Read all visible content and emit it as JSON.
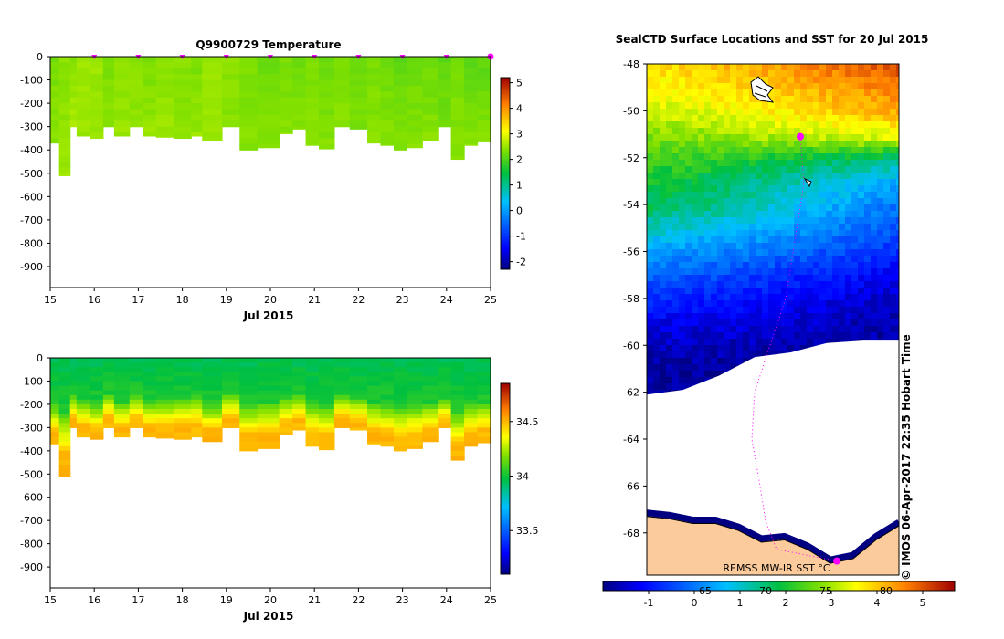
{
  "chart_data": [
    {
      "id": "temperature",
      "type": "heatmap",
      "title": "Q9900729  Temperature",
      "xlabel": "Jul 2015",
      "ylabel": "",
      "xlim": [
        15,
        25
      ],
      "ylim": [
        -990,
        0
      ],
      "x_ticks": [
        15,
        16,
        17,
        18,
        19,
        20,
        21,
        22,
        23,
        24,
        25
      ],
      "y_ticks": [
        0,
        -100,
        -200,
        -300,
        -400,
        -500,
        -600,
        -700,
        -800,
        -900
      ],
      "profile_markers": [
        16,
        17,
        18,
        19,
        20,
        21,
        22,
        23,
        24,
        25
      ],
      "colorbar": {
        "min": -2.3,
        "max": 5.2,
        "ticks": [
          5,
          4,
          3,
          2,
          1,
          0,
          -1,
          -2
        ]
      },
      "profile_x": [
        15.0,
        15.2,
        15.45,
        15.6,
        15.9,
        16.2,
        16.45,
        16.8,
        17.1,
        17.4,
        17.8,
        18.2,
        18.45,
        18.9,
        19.3,
        19.7,
        20.2,
        20.5,
        20.8,
        21.1,
        21.45,
        21.8,
        22.2,
        22.5,
        22.8,
        23.1,
        23.45,
        23.8,
        24.1,
        24.4,
        24.7,
        25.0
      ],
      "profile_depth": [
        -370,
        -510,
        -300,
        -340,
        -350,
        -300,
        -340,
        -300,
        -340,
        -345,
        -350,
        -340,
        -360,
        -300,
        -400,
        -390,
        -330,
        -310,
        -380,
        -395,
        -300,
        -310,
        -370,
        -380,
        -400,
        -390,
        -360,
        -300,
        -440,
        -380,
        -365,
        -350
      ],
      "surface_temp": [
        2.3,
        2.4,
        2.4,
        2.5,
        2.5,
        2.3,
        2.4,
        2.4,
        2.3,
        2.4,
        2.4,
        2.3,
        2.5,
        2.4,
        2.3,
        2.2,
        2.3,
        2.2,
        2.3,
        2.2,
        2.3,
        2.2,
        2.3,
        2.2,
        2.1,
        2.2,
        2.2,
        2.1,
        2.3,
        2.1,
        2.1,
        2.2
      ],
      "deep_temp": [
        2.4,
        2.5,
        2.6,
        2.5,
        2.5,
        2.4,
        2.5,
        2.4,
        2.5,
        2.5,
        2.4,
        2.5,
        2.5,
        2.4,
        2.4,
        2.4,
        2.4,
        2.4,
        2.4,
        2.4,
        2.4,
        2.3,
        2.4,
        2.4,
        2.4,
        2.4,
        2.4,
        2.3,
        2.4,
        2.4,
        2.4,
        2.4
      ]
    },
    {
      "id": "salinity",
      "type": "heatmap",
      "title": "",
      "xlabel": "Jul 2015",
      "ylabel": "",
      "xlim": [
        15,
        25
      ],
      "ylim": [
        -990,
        0
      ],
      "x_ticks": [
        15,
        16,
        17,
        18,
        19,
        20,
        21,
        22,
        23,
        24,
        25
      ],
      "y_ticks": [
        0,
        -100,
        -200,
        -300,
        -400,
        -500,
        -600,
        -700,
        -800,
        -900
      ],
      "colorbar": {
        "min": 33.1,
        "max": 34.85,
        "ticks": [
          34.5,
          34,
          33.5
        ]
      },
      "profile_x": [
        15.0,
        15.2,
        15.45,
        15.6,
        15.9,
        16.2,
        16.45,
        16.8,
        17.1,
        17.4,
        17.8,
        18.2,
        18.45,
        18.9,
        19.3,
        19.7,
        20.2,
        20.5,
        20.8,
        21.1,
        21.45,
        21.8,
        22.2,
        22.5,
        22.8,
        23.1,
        23.45,
        23.8,
        24.1,
        24.4,
        24.7,
        25.0
      ],
      "profile_depth": [
        -370,
        -510,
        -300,
        -340,
        -350,
        -300,
        -340,
        -300,
        -340,
        -345,
        -350,
        -340,
        -360,
        -300,
        -400,
        -390,
        -330,
        -310,
        -380,
        -395,
        -300,
        -310,
        -370,
        -380,
        -400,
        -390,
        -360,
        -300,
        -440,
        -380,
        -365,
        -350
      ],
      "halocline_depth": [
        -200,
        -230,
        -160,
        -180,
        -200,
        -150,
        -190,
        -160,
        -190,
        -180,
        -170,
        -160,
        -200,
        -150,
        -200,
        -190,
        -170,
        -160,
        -200,
        -210,
        -160,
        -170,
        -190,
        -200,
        -210,
        -200,
        -190,
        -170,
        -230,
        -200,
        -190,
        -180
      ],
      "surface_salinity": 33.95,
      "deep_salinity": 34.5
    },
    {
      "id": "sst_map",
      "type": "heatmap",
      "title": "SealCTD Surface Locations and SST for 20 Jul 2015",
      "xlabel": "",
      "ylabel": "",
      "ylim": [
        -69.8,
        -48
      ],
      "y_ticks": [
        -48,
        -50,
        -52,
        -54,
        -56,
        -58,
        -60,
        -62,
        -64,
        -66,
        -68
      ],
      "colorbar": {
        "min": -2,
        "max": 5.7,
        "ticks": [
          -1,
          0,
          1,
          2,
          3,
          4,
          5
        ]
      },
      "colorbar_overlay_ticks": [
        "65",
        "70",
        "75",
        "80"
      ],
      "colorbar_label": "REMSS MW-IR SST °C",
      "credit": "©  IMOS 06-Apr-2017 22:35 Hobart Time",
      "sst_bands": [
        {
          "lat": -48,
          "west": 3.8,
          "east": 5.1
        },
        {
          "lat": -50,
          "west": 3.2,
          "east": 4.2
        },
        {
          "lat": -51,
          "west": 2.7,
          "east": 3.4
        },
        {
          "lat": -52,
          "west": 2.3,
          "east": 1.3
        },
        {
          "lat": -53,
          "west": 1.9,
          "east": 0.4
        },
        {
          "lat": -54,
          "west": 1.7,
          "east": -0.1
        },
        {
          "lat": -55,
          "west": 1.0,
          "east": -0.4
        },
        {
          "lat": -56,
          "west": 0.3,
          "east": -0.8
        },
        {
          "lat": -57,
          "west": -0.3,
          "east": -1.3
        },
        {
          "lat": -58,
          "west": -0.8,
          "east": -1.6
        },
        {
          "lat": -59,
          "west": -1.3,
          "east": -1.7
        },
        {
          "lat": -60,
          "west": -1.6,
          "east": -1.8
        },
        {
          "lat": -61,
          "west": -1.8,
          "east": -1.8
        }
      ],
      "sea_ice_edge_lat": [
        -62.1,
        -61.9,
        -61.3,
        -60.5,
        -60.3,
        -59.9,
        -59.8,
        -59.8
      ],
      "coast_lat": [
        -67.3,
        -67.4,
        -67.6,
        -67.6,
        -67.9,
        -68.4,
        -68.3,
        -68.7,
        -69.3,
        -69.1,
        -68.3,
        -67.7
      ],
      "seal_track_lat": [
        -51.1,
        -53.1,
        -58,
        -62,
        -64,
        -66,
        -67.5,
        -68.7,
        -69.2
      ],
      "seal_positions": [
        {
          "label": "SealCTD surface location",
          "lat": -51.1
        },
        {
          "label": "SealCTD surface location",
          "lat": -69.2
        }
      ]
    }
  ]
}
